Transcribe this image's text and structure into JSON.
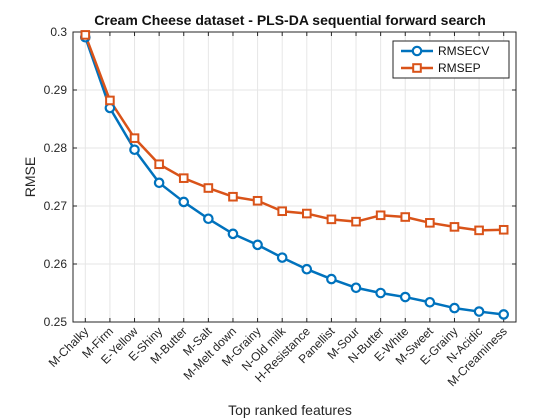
{
  "chart_data": {
    "type": "line",
    "title": "Cream Cheese dataset - PLS-DA sequential forward search",
    "xlabel": "Top ranked features",
    "ylabel": "RMSE",
    "categories": [
      "M-Chalky",
      "M-Firm",
      "E-Yellow",
      "E-Shiny",
      "M-Butter",
      "M-Salt",
      "M-Melt down",
      "M-Grainy",
      "N-Old milk",
      "H-Resistance",
      "Panellist",
      "M-Sour",
      "N-Butter",
      "E-White",
      "M-Sweet",
      "E-Grainy",
      "N-Acidic",
      "M-Creaminess"
    ],
    "ylim": [
      0.25,
      0.3
    ],
    "yticks": [
      0.25,
      0.26,
      0.27,
      0.28,
      0.29,
      0.3
    ],
    "ytick_labels": [
      "0.25",
      "0.26",
      "0.27",
      "0.28",
      "0.29",
      "0.3"
    ],
    "grid": true,
    "legend_position": "top-right",
    "series": [
      {
        "name": "RMSECV",
        "color": "#0072BD",
        "marker": "circle",
        "values": [
          0.2991,
          0.2869,
          0.2797,
          0.274,
          0.2707,
          0.2678,
          0.2652,
          0.2633,
          0.2611,
          0.2591,
          0.2574,
          0.2559,
          0.255,
          0.2543,
          0.2534,
          0.2524,
          0.2518,
          0.2513
        ]
      },
      {
        "name": "RMSEP",
        "color": "#D95319",
        "marker": "square",
        "values": [
          0.2995,
          0.2882,
          0.2817,
          0.2772,
          0.2748,
          0.2731,
          0.2716,
          0.2709,
          0.2691,
          0.2687,
          0.2677,
          0.2673,
          0.2684,
          0.2681,
          0.2671,
          0.2664,
          0.2658,
          0.2659
        ]
      }
    ]
  }
}
